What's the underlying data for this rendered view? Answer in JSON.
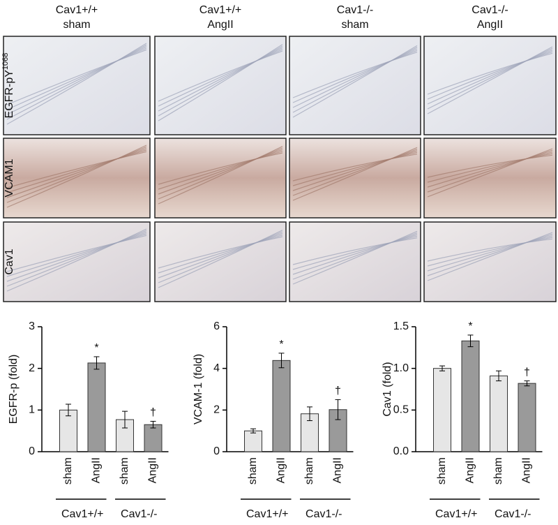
{
  "panels": {
    "columns": [
      [
        "Cav1+/+",
        "sham"
      ],
      [
        "Cav1+/+",
        "AngII"
      ],
      [
        "Cav1-/-",
        "sham"
      ],
      [
        "Cav1-/-",
        "AngII"
      ]
    ],
    "rows": [
      {
        "label": "EGFR-pY",
        "superscript": "1068"
      },
      {
        "label": "VCAM1"
      },
      {
        "label": "Cav1"
      }
    ]
  },
  "chart_data": [
    {
      "type": "bar",
      "y_label": "EGFR-p (fold)",
      "categories": [
        "sham",
        "AngII",
        "sham",
        "AngII"
      ],
      "values": [
        1.0,
        2.13,
        0.77,
        0.65
      ],
      "errors": [
        0.14,
        0.15,
        0.2,
        0.08
      ],
      "colors": [
        "#e6e6e6",
        "#9a9a9a",
        "#e6e6e6",
        "#9a9a9a"
      ],
      "bar_marks": [
        null,
        "*",
        null,
        "†"
      ],
      "groups": [
        "Cav1+/+",
        "Cav1-/-"
      ],
      "ylim": [
        0,
        3
      ],
      "yticks": [
        0,
        1,
        2,
        3
      ]
    },
    {
      "type": "bar",
      "y_label": "VCAM-1 (fold)",
      "categories": [
        "sham",
        "AngII",
        "sham",
        "AngII"
      ],
      "values": [
        1.0,
        4.38,
        1.82,
        2.02
      ],
      "errors": [
        0.1,
        0.35,
        0.33,
        0.48
      ],
      "colors": [
        "#e6e6e6",
        "#9a9a9a",
        "#e6e6e6",
        "#9a9a9a"
      ],
      "bar_marks": [
        null,
        "*",
        null,
        "†"
      ],
      "groups": [
        "Cav1+/+",
        "Cav1-/-"
      ],
      "ylim": [
        0,
        6
      ],
      "yticks": [
        0,
        2,
        4,
        6
      ]
    },
    {
      "type": "bar",
      "y_label": "Cav1 (fold)",
      "categories": [
        "sham",
        "AngII",
        "sham",
        "AngII"
      ],
      "values": [
        1.0,
        1.33,
        0.91,
        0.82
      ],
      "errors": [
        0.03,
        0.07,
        0.06,
        0.03
      ],
      "colors": [
        "#e6e6e6",
        "#9a9a9a",
        "#e6e6e6",
        "#9a9a9a"
      ],
      "bar_marks": [
        null,
        "*",
        null,
        "†"
      ],
      "groups": [
        "Cav1+/+",
        "Cav1-/-"
      ],
      "ylim": [
        0,
        1.5
      ],
      "yticks": [
        {
          "value": 0,
          "label": "0.0"
        },
        {
          "value": 0.5,
          "label": "0.5"
        },
        {
          "value": 1,
          "label": "1.0"
        },
        {
          "value": 1.5,
          "label": "1.5"
        }
      ]
    }
  ]
}
